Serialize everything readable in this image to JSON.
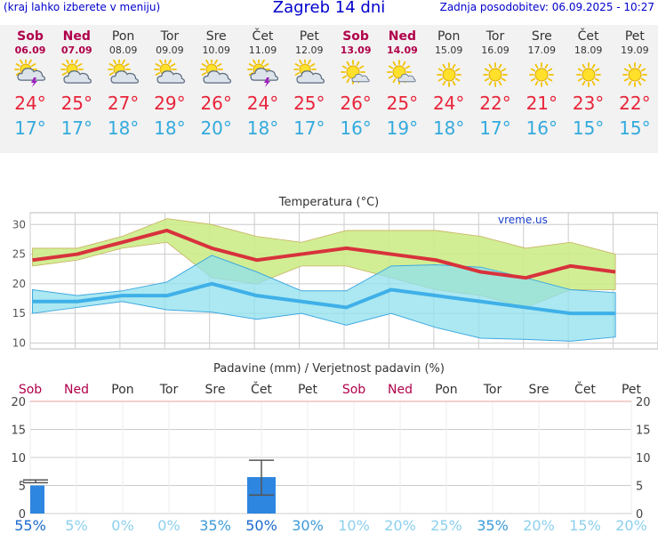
{
  "header": {
    "left_note": "(kraj lahko izberete v meniju)",
    "title": "Zagreb 14 dni",
    "updated": "Zadnja posodobitev: 06.09.2025 - 10:27"
  },
  "days": [
    {
      "name": "Sob",
      "date": "06.09",
      "weekend": true,
      "icon": "sun-cloud-storm-icon",
      "tmax": 24,
      "tmin": 17
    },
    {
      "name": "Ned",
      "date": "07.09",
      "weekend": true,
      "icon": "sun-cloud-icon",
      "tmax": 25,
      "tmin": 17
    },
    {
      "name": "Pon",
      "date": "08.09",
      "weekend": false,
      "icon": "sun-cloud-icon",
      "tmax": 27,
      "tmin": 18
    },
    {
      "name": "Tor",
      "date": "09.09",
      "weekend": false,
      "icon": "sun-cloud-icon",
      "tmax": 29,
      "tmin": 18
    },
    {
      "name": "Sre",
      "date": "10.09",
      "weekend": false,
      "icon": "sun-cloud-icon",
      "tmax": 26,
      "tmin": 20
    },
    {
      "name": "Čet",
      "date": "11.09",
      "weekend": false,
      "icon": "sun-cloud-storm-icon",
      "tmax": 24,
      "tmin": 18
    },
    {
      "name": "Pet",
      "date": "12.09",
      "weekend": false,
      "icon": "sun-cloud-icon",
      "tmax": 25,
      "tmin": 17
    },
    {
      "name": "Sob",
      "date": "13.09",
      "weekend": true,
      "icon": "sun-small-cloud-icon",
      "tmax": 26,
      "tmin": 16
    },
    {
      "name": "Ned",
      "date": "14.09",
      "weekend": true,
      "icon": "sun-small-cloud-icon",
      "tmax": 25,
      "tmin": 19
    },
    {
      "name": "Pon",
      "date": "15.09",
      "weekend": false,
      "icon": "sun-icon",
      "tmax": 24,
      "tmin": 18
    },
    {
      "name": "Tor",
      "date": "16.09",
      "weekend": false,
      "icon": "sun-icon",
      "tmax": 22,
      "tmin": 17
    },
    {
      "name": "Sre",
      "date": "17.09",
      "weekend": false,
      "icon": "sun-icon",
      "tmax": 21,
      "tmin": 16
    },
    {
      "name": "Čet",
      "date": "18.09",
      "weekend": false,
      "icon": "sun-icon",
      "tmax": 23,
      "tmin": 15
    },
    {
      "name": "Pet",
      "date": "19.09",
      "weekend": false,
      "icon": "sun-icon",
      "tmax": 22,
      "tmin": 15
    }
  ],
  "degree_symbol": "°",
  "colors": {
    "tmax": "#e8243a",
    "tmin": "#33aadd",
    "weekend": "#b0004a",
    "max_line": "#d8323c",
    "min_line": "#3fb0e8",
    "max_band": "#ccec88",
    "min_band": "#8fe0ee",
    "overlap": "#88d878",
    "precip_bar": "#2d86e0"
  },
  "chart_data": [
    {
      "type": "line",
      "title": "Temperatura (°C)",
      "watermark": "vreme.us",
      "categories": [
        "Sob",
        "Ned",
        "Pon",
        "Tor",
        "Sre",
        "Čet",
        "Pet",
        "Sob",
        "Ned",
        "Pon",
        "Tor",
        "Sre",
        "Čet",
        "Pet"
      ],
      "ylim": [
        9,
        32
      ],
      "yticks": [
        10,
        15,
        20,
        25,
        30
      ],
      "series": [
        {
          "values": [
            24,
            25,
            27,
            29,
            26,
            24,
            25,
            26,
            25,
            24,
            22,
            21,
            23,
            22
          ]
        },
        {
          "values": [
            17,
            17,
            18,
            18,
            20,
            18,
            17,
            16,
            19,
            18,
            17,
            16,
            15,
            15
          ]
        }
      ],
      "max_range": {
        "low": [
          23,
          24,
          26,
          27,
          21,
          20,
          23,
          23,
          21,
          19,
          18,
          16,
          19,
          19
        ],
        "high": [
          26,
          26,
          28,
          31,
          30,
          28,
          27,
          29,
          29,
          29,
          28,
          26,
          27,
          25
        ]
      },
      "min_range": {
        "low": [
          15,
          16,
          17,
          15.6,
          15.2,
          14,
          15,
          13,
          15,
          12.6,
          10.8,
          10.6,
          10.3,
          11
        ]
      },
      "min_range_high": [
        19,
        18,
        18.8,
        20.3,
        24.8,
        22,
        18.8,
        18.8,
        23,
        23.2,
        22.8,
        21,
        19,
        18.5
      ],
      "grid": true
    },
    {
      "type": "bar",
      "title": "Padavine (mm) / Verjetnost padavin (%)",
      "categories": [
        "Sob",
        "Ned",
        "Pon",
        "Tor",
        "Sre",
        "Čet",
        "Pet",
        "Sob",
        "Ned",
        "Pon",
        "Tor",
        "Sre",
        "Čet",
        "Pet"
      ],
      "values": [
        5,
        0,
        0,
        0,
        0,
        6.5,
        0,
        0,
        0,
        0,
        0,
        0,
        0,
        0
      ],
      "error_high": [
        6,
        0,
        0,
        0,
        0,
        9.5,
        0,
        0,
        0,
        0,
        0,
        0,
        0,
        0
      ],
      "error_low": [
        5.5,
        0,
        0,
        0,
        0,
        3.3,
        0,
        0,
        0,
        0,
        0,
        0,
        0,
        0
      ],
      "probability": [
        "55%",
        "5%",
        "0%",
        "0%",
        "35%",
        "50%",
        "30%",
        "10%",
        "20%",
        "25%",
        "35%",
        "20%",
        "15%",
        "20%"
      ],
      "ylim": [
        0,
        20
      ],
      "yticks": [
        0,
        5,
        10,
        15,
        20
      ]
    }
  ]
}
